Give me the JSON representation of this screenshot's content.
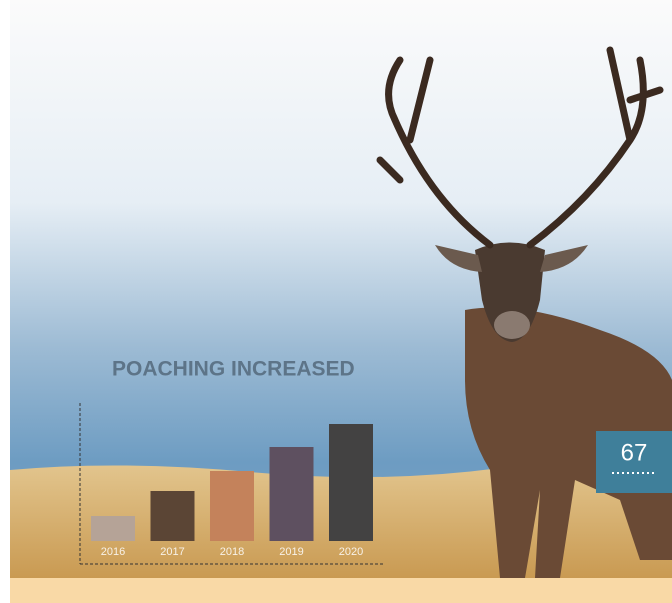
{
  "chart_data": {
    "type": "bar",
    "title": "POACHING INCREASED",
    "categories": [
      "2016",
      "2017",
      "2018",
      "2019",
      "2020"
    ],
    "values": [
      25,
      50,
      70,
      94,
      117
    ],
    "colors": [
      "#b5a397",
      "#5b4535",
      "#c4825b",
      "#5e5060",
      "#434242"
    ],
    "ylim": [
      0,
      130
    ]
  },
  "page_number": "67"
}
